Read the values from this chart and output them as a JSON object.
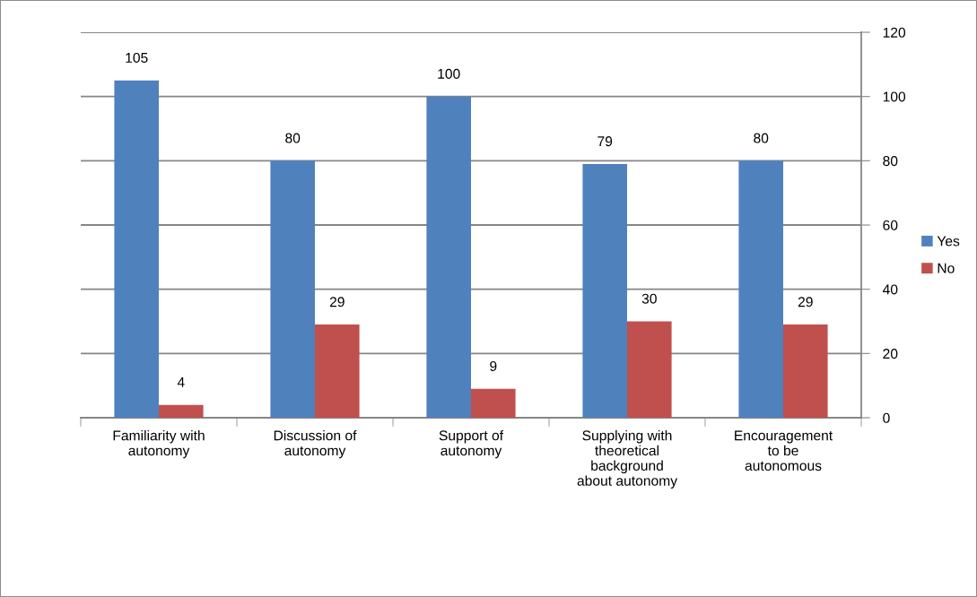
{
  "chart_data": {
    "type": "bar",
    "categories": [
      "Familiarity with\nautonomy",
      "Discussion of\nautonomy",
      "Support of\nautonomy",
      "Supplying with\ntheoretical\nbackground\nabout autonomy",
      "Encouragement\nto be\nautonomous"
    ],
    "series": [
      {
        "name": "Yes",
        "color": "#4f81bd",
        "values": [
          105,
          80,
          100,
          79,
          80
        ]
      },
      {
        "name": "No",
        "color": "#c0504d",
        "values": [
          4,
          29,
          9,
          30,
          29
        ]
      }
    ],
    "ylim": [
      0,
      120
    ],
    "yticks": [
      0,
      20,
      40,
      60,
      80,
      100,
      120
    ],
    "grid": "y",
    "legend": "right",
    "data_labels": true
  }
}
